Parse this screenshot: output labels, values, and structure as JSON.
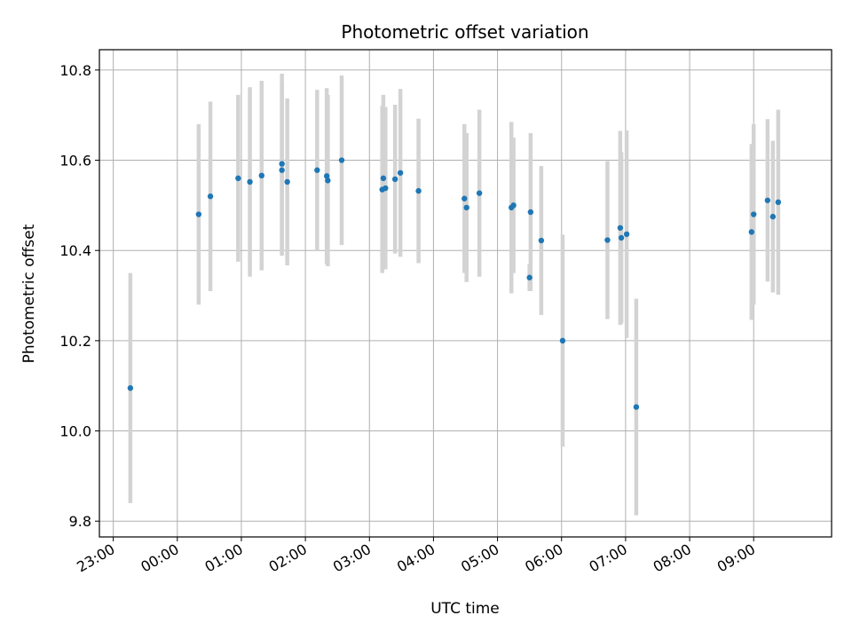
{
  "chart_data": {
    "type": "scatter",
    "title": "Photometric offset variation",
    "xlabel": "UTC time",
    "ylabel": "Photometric offset",
    "xlim": [
      "22:47",
      "10:13"
    ],
    "ylim": [
      9.765,
      10.845
    ],
    "x_ticks": [
      "23:00",
      "00:00",
      "01:00",
      "02:00",
      "03:00",
      "04:00",
      "05:00",
      "06:00",
      "07:00",
      "08:00",
      "09:00"
    ],
    "y_ticks": [
      "9.8",
      "10.0",
      "10.2",
      "10.4",
      "10.6",
      "10.8"
    ],
    "grid": true,
    "colors": {
      "point": "#1f77b4",
      "errorbar": "#d3d3d3",
      "grid": "#b0b0b0"
    },
    "series": [
      {
        "x": [
          "23:16",
          "00:20",
          "00:31",
          "00:57",
          "01:08",
          "01:19",
          "01:38",
          "01:38",
          "01:43",
          "02:11",
          "02:20",
          "02:21",
          "02:34",
          "03:12",
          "03:13",
          "03:15",
          "03:24",
          "03:29",
          "03:46",
          "04:29",
          "04:31",
          "04:43",
          "05:13",
          "05:15",
          "05:30",
          "05:31",
          "05:41",
          "06:01",
          "06:43",
          "06:55",
          "06:56",
          "07:01",
          "07:10",
          "08:58",
          "09:00",
          "09:13",
          "09:18",
          "09:23"
        ],
        "y": [
          10.095,
          10.48,
          10.52,
          10.56,
          10.552,
          10.566,
          10.592,
          10.578,
          10.552,
          10.578,
          10.565,
          10.555,
          10.6,
          10.535,
          10.56,
          10.538,
          10.558,
          10.572,
          10.532,
          10.515,
          10.495,
          10.527,
          10.495,
          10.5,
          10.34,
          10.485,
          10.422,
          10.2,
          10.423,
          10.45,
          10.428,
          10.436,
          10.053,
          10.441,
          10.48,
          10.511,
          10.475,
          10.507
        ],
        "yerr": [
          0.255,
          0.2,
          0.21,
          0.185,
          0.21,
          0.21,
          0.2,
          0.19,
          0.185,
          0.178,
          0.195,
          0.19,
          0.188,
          0.185,
          0.185,
          0.18,
          0.165,
          0.186,
          0.16,
          0.165,
          0.165,
          0.185,
          0.19,
          0.15,
          0.03,
          0.175,
          0.165,
          0.235,
          0.175,
          0.215,
          0.19,
          0.23,
          0.24,
          0.195,
          0.2,
          0.18,
          0.168,
          0.205
        ]
      }
    ]
  }
}
